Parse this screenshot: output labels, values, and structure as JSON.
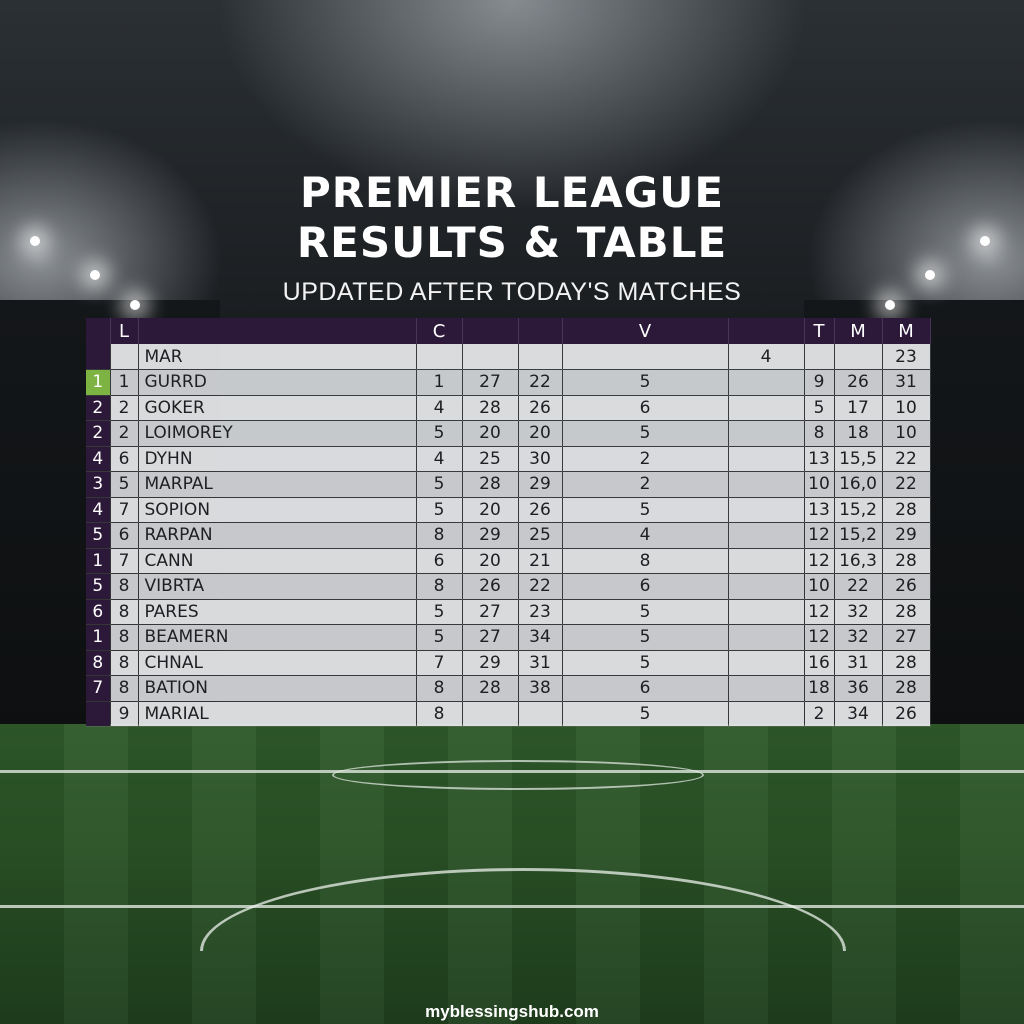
{
  "title": {
    "line1": "PREMIER LEAGUE",
    "line2": "RESULTS & TABLE",
    "subtitle": "UPDATED AFTER TODAY'S MATCHES"
  },
  "table": {
    "headers": [
      "",
      "L",
      "",
      "C",
      "",
      "",
      "V",
      "",
      "T",
      "M",
      "M"
    ],
    "rows": [
      [
        "",
        "",
        "MAR",
        "",
        "",
        "",
        "",
        "4",
        "",
        "",
        "23"
      ],
      [
        "1",
        "1",
        "GURRD",
        "1",
        "27",
        "22",
        "5",
        "",
        "9",
        "26",
        "31"
      ],
      [
        "2",
        "2",
        "GOKER",
        "4",
        "28",
        "26",
        "6",
        "",
        "5",
        "17",
        "10"
      ],
      [
        "2",
        "2",
        "LOIMOREY",
        "5",
        "20",
        "20",
        "5",
        "",
        "8",
        "18",
        "10"
      ],
      [
        "4",
        "6",
        "DYHN",
        "4",
        "25",
        "30",
        "2",
        "",
        "13",
        "15,5",
        "22"
      ],
      [
        "3",
        "5",
        "MARPAL",
        "5",
        "28",
        "29",
        "2",
        "",
        "10",
        "16,0",
        "22"
      ],
      [
        "4",
        "7",
        "SOPION",
        "5",
        "20",
        "26",
        "5",
        "",
        "13",
        "15,2",
        "28"
      ],
      [
        "5",
        "6",
        "RARPAN",
        "8",
        "29",
        "25",
        "4",
        "",
        "12",
        "15,2",
        "29"
      ],
      [
        "1",
        "7",
        "CANN",
        "6",
        "20",
        "21",
        "8",
        "",
        "12",
        "16,3",
        "28"
      ],
      [
        "5",
        "8",
        "VIBRTA",
        "8",
        "26",
        "22",
        "6",
        "",
        "10",
        "22",
        "26"
      ],
      [
        "6",
        "8",
        "PARES",
        "5",
        "27",
        "23",
        "5",
        "",
        "12",
        "32",
        "28"
      ],
      [
        "1",
        "8",
        "BEAMERN",
        "5",
        "27",
        "34",
        "5",
        "",
        "12",
        "32",
        "27"
      ],
      [
        "8",
        "8",
        "CHNAL",
        "7",
        "29",
        "31",
        "5",
        "",
        "16",
        "31",
        "28"
      ],
      [
        "7",
        "8",
        "BATION",
        "8",
        "28",
        "38",
        "6",
        "",
        "18",
        "36",
        "28"
      ],
      [
        "",
        "9",
        "MARIAL",
        "8",
        "",
        "",
        "5",
        "",
        "2",
        "34",
        "26"
      ]
    ]
  },
  "website": "myblessingshub.com",
  "colors": {
    "header_purple": "#2c1838",
    "leader_green": "#7cb342",
    "pitch_green": "#2f5a2b"
  }
}
